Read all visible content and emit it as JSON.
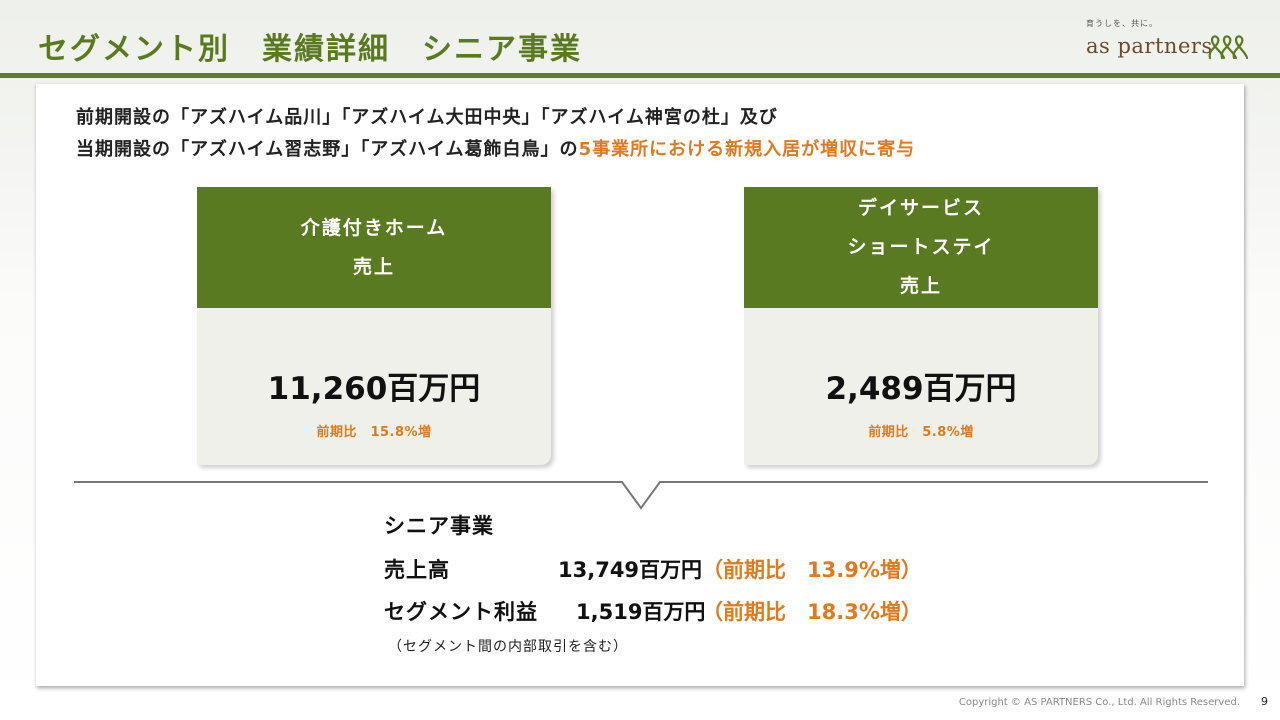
{
  "header": {
    "title": "セグメント別　業績詳細　シニア事業",
    "logo_tagline": "育うしを、共に。",
    "logo_wordmark": "as partners"
  },
  "intro": {
    "line1": "前期開設の「アズハイム品川」「アズハイム大田中央」「アズハイム神宮の杜」及び",
    "line2_prefix": "当期開設の「アズハイム習志野」「アズハイム葛飾白鳥」の",
    "line2_highlight": "5事業所における新規入居が増収に寄与"
  },
  "cards": [
    {
      "heading_lines": [
        "介護付きホーム",
        "売上"
      ],
      "value": "11,260百万円",
      "change": "前期比　15.8%増"
    },
    {
      "heading_lines": [
        "デイサービス",
        "ショートステイ",
        "売上"
      ],
      "value": "2,489百万円",
      "change": "前期比　5.8%増"
    }
  ],
  "summary": {
    "title": "シニア事業",
    "rows": [
      {
        "label": "売上高",
        "value": "13,749百万円",
        "change": "（前期比　13.9%増）"
      },
      {
        "label": "セグメント利益",
        "value": "1,519百万円",
        "change": "（前期比　18.3%増）"
      }
    ],
    "note": "（セグメント間の内部取引を含む）"
  },
  "footer": {
    "copyright": "Copyright © AS PARTNERS Co., Ltd. All Rights Reserved.",
    "page": "9"
  },
  "colors": {
    "brand_green": "#5a7a22",
    "accent_orange": "#e07a1f",
    "card_bg": "#eef0e9"
  }
}
